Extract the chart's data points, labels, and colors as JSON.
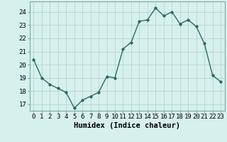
{
  "x": [
    0,
    1,
    2,
    3,
    4,
    5,
    6,
    7,
    8,
    9,
    10,
    11,
    12,
    13,
    14,
    15,
    16,
    17,
    18,
    19,
    20,
    21,
    22,
    23
  ],
  "y": [
    20.4,
    19.0,
    18.5,
    18.2,
    17.9,
    16.7,
    17.3,
    17.6,
    17.9,
    19.1,
    19.0,
    21.2,
    21.7,
    23.3,
    23.4,
    24.3,
    23.7,
    24.0,
    23.1,
    23.4,
    22.9,
    21.6,
    19.2,
    18.7
  ],
  "line_color": "#2d6b5e",
  "marker": "D",
  "marker_size": 1.8,
  "bg_color": "#d6f0ee",
  "grid_color": "#b8d4d0",
  "xlabel": "Humidex (Indice chaleur)",
  "ylim": [
    16.5,
    24.8
  ],
  "yticks": [
    17,
    18,
    19,
    20,
    21,
    22,
    23,
    24
  ],
  "xticks": [
    0,
    1,
    2,
    3,
    4,
    5,
    6,
    7,
    8,
    9,
    10,
    11,
    12,
    13,
    14,
    15,
    16,
    17,
    18,
    19,
    20,
    21,
    22,
    23
  ],
  "xlabel_fontsize": 7.5,
  "tick_fontsize": 6.5,
  "line_width": 1.0
}
